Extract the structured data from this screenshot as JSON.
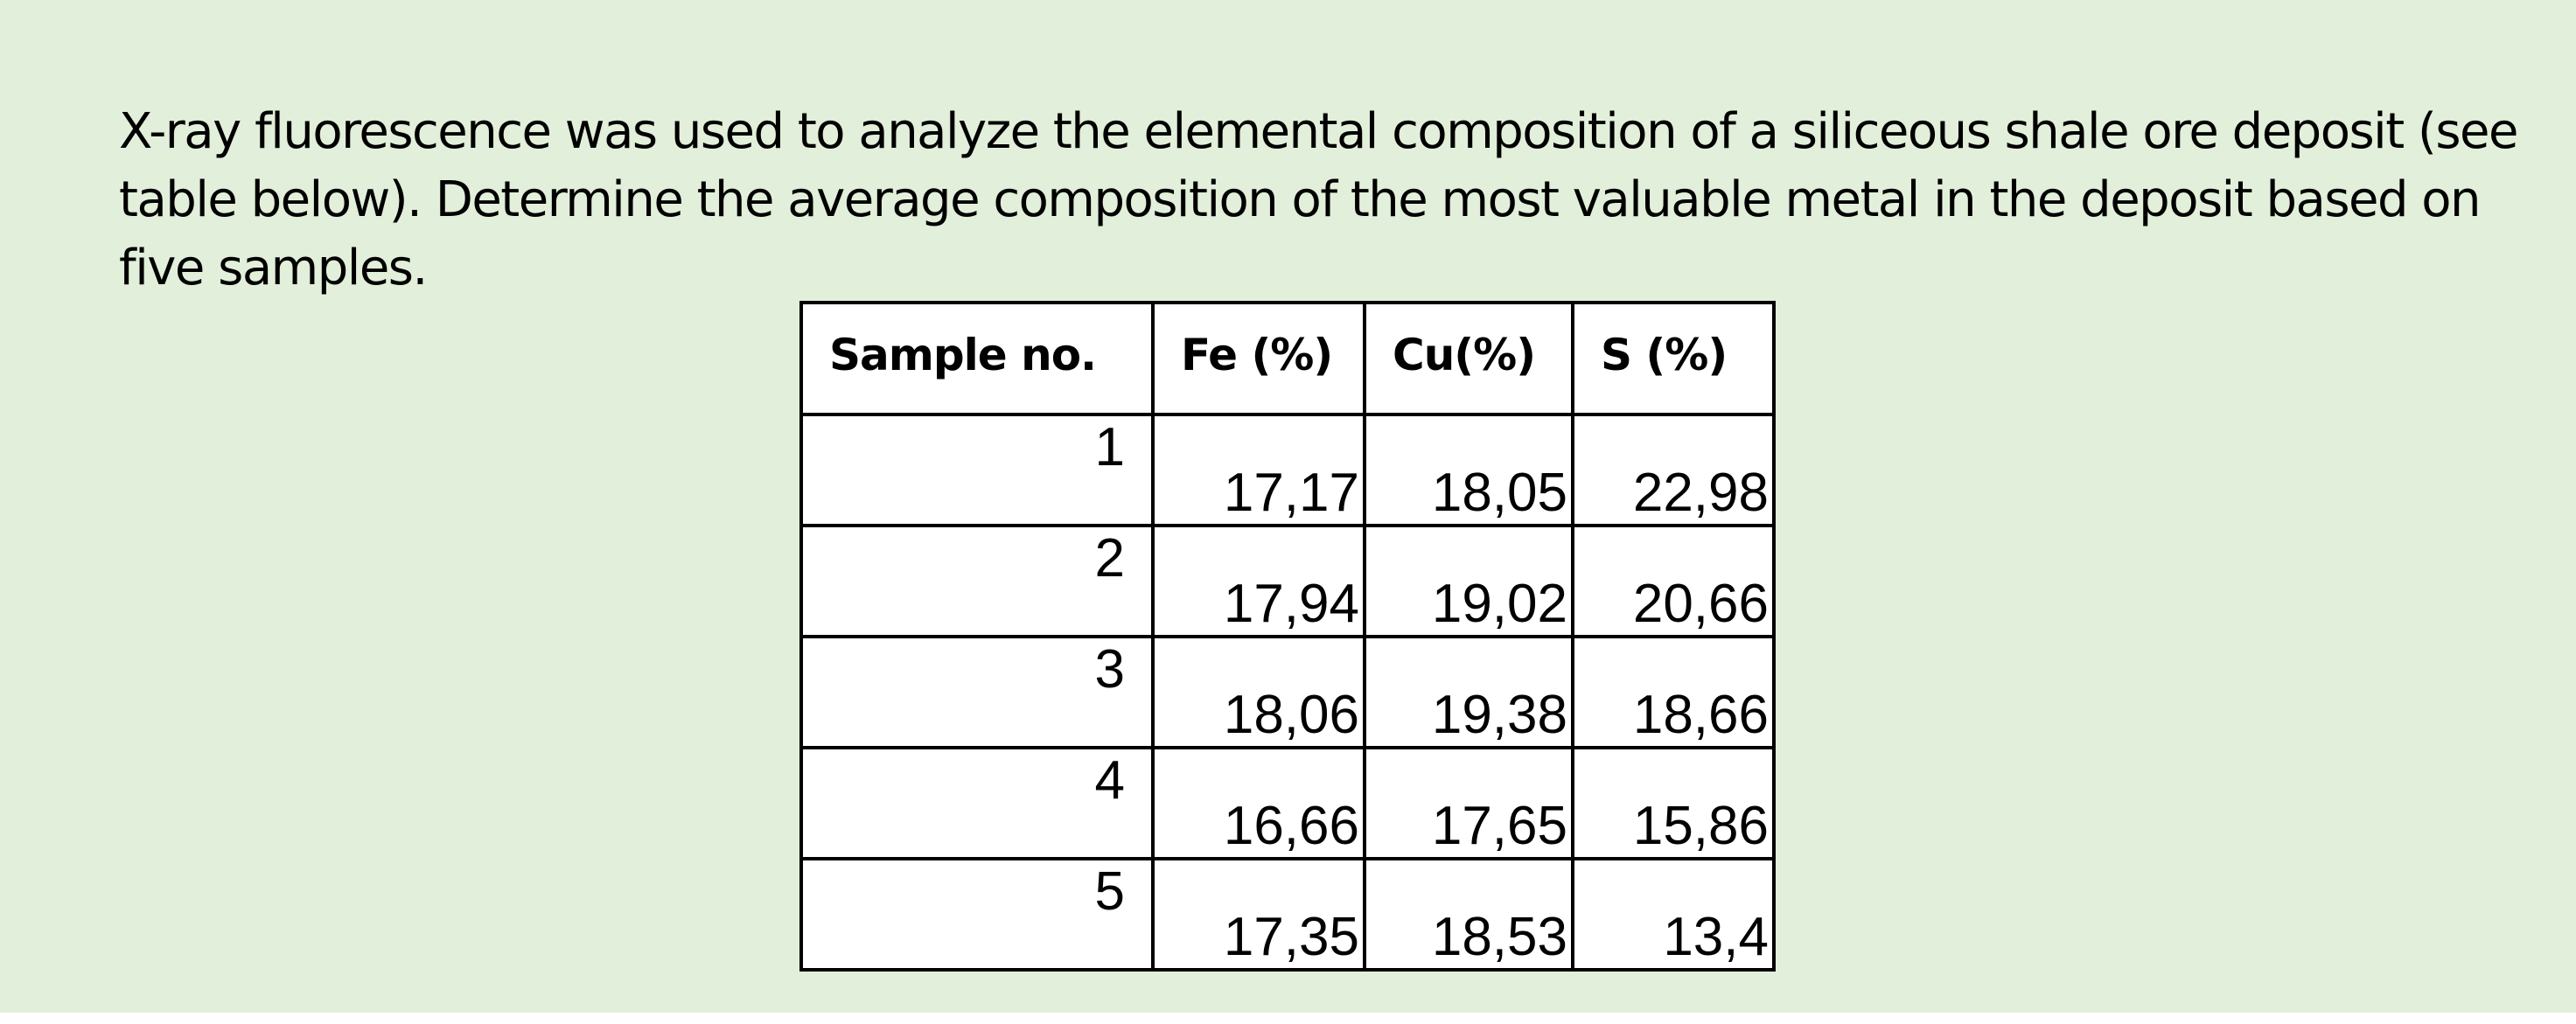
{
  "question": {
    "text": "X-ray fluorescence was used to analyze the elemental composition of a siliceous shale ore deposit (see table below). Determine the average composition of the most valuable metal in the deposit based on five samples."
  },
  "table": {
    "headers": [
      "Sample no.",
      "Fe (%)",
      "Cu(%)",
      "S (%)"
    ],
    "rows": [
      [
        "1",
        "17,17",
        "18,05",
        "22,98"
      ],
      [
        "2",
        "17,94",
        "19,02",
        "20,66"
      ],
      [
        "3",
        "18,06",
        "19,38",
        "18,66"
      ],
      [
        "4",
        "16,66",
        "17,65",
        "15,86"
      ],
      [
        "5",
        "17,35",
        "18,53",
        "13,4"
      ]
    ]
  },
  "colors": {
    "background": "#e2efda",
    "table_background": "#ffffff",
    "border": "#000000",
    "text": "#000000"
  }
}
